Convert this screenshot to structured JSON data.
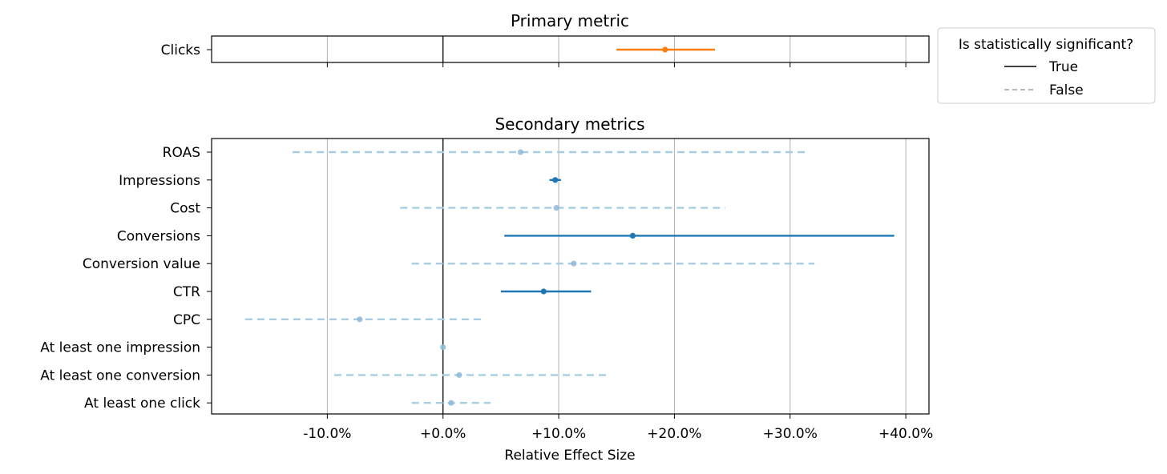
{
  "chart_data": [
    {
      "type": "forest",
      "title": "Primary metric",
      "xlim": [
        -20,
        42
      ],
      "grid_x": true,
      "reference_line_x": 0,
      "metrics": [
        {
          "name": "Clicks",
          "estimate": 19.2,
          "ci_low": 15.0,
          "ci_high": 23.5,
          "significant": true,
          "color": "#ff7f0e"
        }
      ]
    },
    {
      "type": "forest",
      "title": "Secondary metrics",
      "xlabel": "Relative Effect Size",
      "xlim": [
        -20,
        42
      ],
      "xticks": [
        -10,
        0,
        10,
        20,
        30,
        40
      ],
      "xtick_labels": [
        "-10.0%",
        "+0.0%",
        "+10.0%",
        "+20.0%",
        "+30.0%",
        "+40.0%"
      ],
      "grid_x": true,
      "reference_line_x": 0,
      "significant_color": "#1f77b4",
      "insignificant_color": "#a6cee3",
      "metrics": [
        {
          "name": "ROAS",
          "estimate": 6.7,
          "ci_low": -13.0,
          "ci_high": 31.5,
          "significant": false
        },
        {
          "name": "Impressions",
          "estimate": 9.7,
          "ci_low": 9.2,
          "ci_high": 10.2,
          "significant": true
        },
        {
          "name": "Cost",
          "estimate": 9.8,
          "ci_low": -3.7,
          "ci_high": 24.4,
          "significant": false
        },
        {
          "name": "Conversions",
          "estimate": 16.4,
          "ci_low": 5.3,
          "ci_high": 39.0,
          "significant": true
        },
        {
          "name": "Conversion value",
          "estimate": 11.3,
          "ci_low": -2.7,
          "ci_high": 32.1,
          "significant": false
        },
        {
          "name": "CTR",
          "estimate": 8.7,
          "ci_low": 5.0,
          "ci_high": 12.8,
          "significant": true
        },
        {
          "name": "CPC",
          "estimate": -7.2,
          "ci_low": -17.1,
          "ci_high": 3.4,
          "significant": false
        },
        {
          "name": "At least one impression",
          "estimate": 0.0,
          "ci_low": -0.1,
          "ci_high": 0.1,
          "significant": false
        },
        {
          "name": "At least one conversion",
          "estimate": 1.4,
          "ci_low": -9.4,
          "ci_high": 14.2,
          "significant": false
        },
        {
          "name": "At least one click",
          "estimate": 0.7,
          "ci_low": -2.7,
          "ci_high": 4.1,
          "significant": false
        }
      ]
    }
  ],
  "legend": {
    "title": "Is statistically significant?",
    "placement": "right",
    "items": [
      {
        "label": "True",
        "style": "solid",
        "color": "#000000"
      },
      {
        "label": "False",
        "style": "dashed",
        "color": "#a0a0a0"
      }
    ]
  }
}
